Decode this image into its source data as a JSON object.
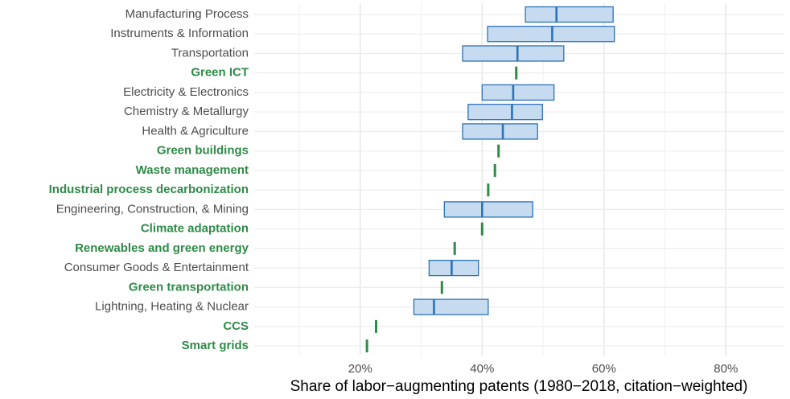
{
  "chart_data": {
    "type": "box",
    "x_label": "Share of labor−augmenting patents (1980−2018, citation−weighted)",
    "categories": [
      "Manufacturing Process",
      "Instruments & Information",
      "Transportation",
      "Green ICT",
      "Electricity & Electronics",
      "Chemistry & Metallurgy",
      "Health & Agriculture",
      "Green buildings",
      "Waste management",
      "Industrial process decarbonization",
      "Engineering, Construction, & Mining",
      "Climate adaptation",
      "Renewables and green energy",
      "Consumer Goods & Entertainment",
      "Green transportation",
      "Lightning, Heating & Nuclear",
      "CCS",
      "Smart grids"
    ],
    "low": [
      47.1,
      40.9,
      36.8,
      null,
      40.0,
      37.7,
      36.8,
      null,
      null,
      null,
      33.8,
      null,
      null,
      31.3,
      null,
      28.8,
      null,
      null
    ],
    "median": [
      52.2,
      51.5,
      45.8,
      45.6,
      45.1,
      44.9,
      43.4,
      42.7,
      42.1,
      41.0,
      40.0,
      40.0,
      35.5,
      35.0,
      33.4,
      32.1,
      22.6,
      21.1
    ],
    "high": [
      61.5,
      61.7,
      53.4,
      null,
      51.8,
      49.9,
      49.1,
      null,
      null,
      null,
      48.3,
      null,
      null,
      39.4,
      null,
      41.0,
      null,
      null
    ],
    "box_color": "#2b72b8",
    "box_fill": "#c6dbef",
    "highlight_color": "#2e8b47",
    "xlim": [
      2.6,
      89.6
    ],
    "xticks": [
      {
        "value": 20,
        "label": "20%"
      },
      {
        "value": 40,
        "label": "40%"
      },
      {
        "value": 60,
        "label": "60%"
      },
      {
        "value": 80,
        "label": "80%"
      }
    ],
    "minor_xticks": [
      10,
      30,
      50,
      70
    ],
    "grid": true
  }
}
